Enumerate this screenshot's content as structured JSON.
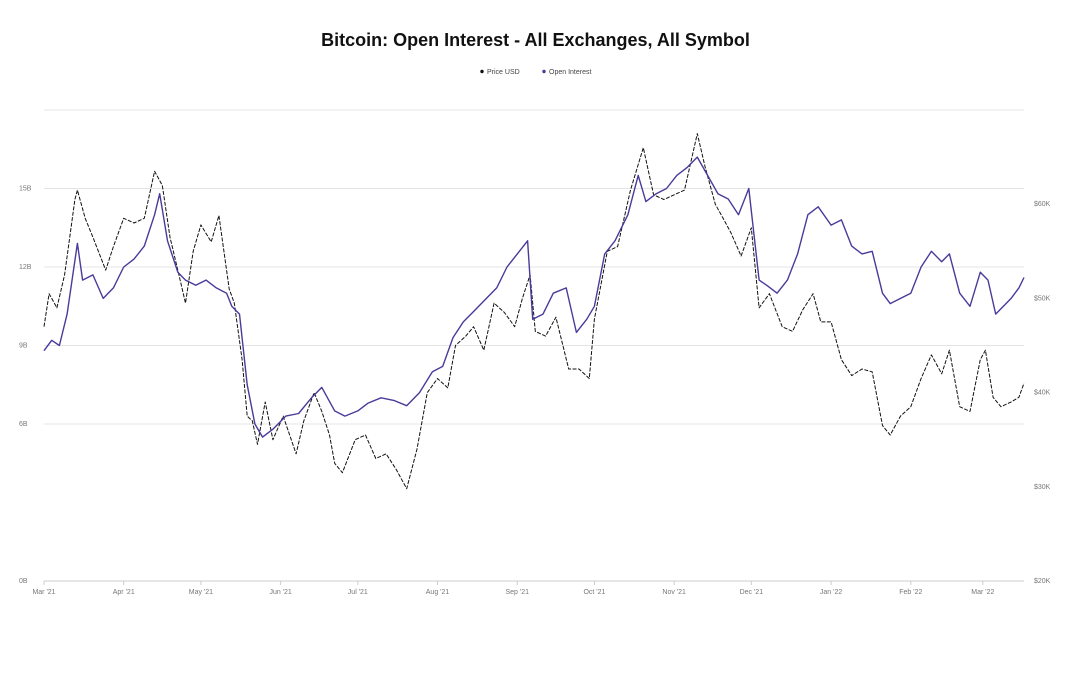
{
  "chart_data": {
    "type": "line",
    "title": "Bitcoin: Open Interest - All Exchanges, All Symbol",
    "legend": {
      "placement": "top-center",
      "entries": [
        {
          "name": "Price USD",
          "color": "#111111"
        },
        {
          "name": "Open Interest",
          "color": "#4b3a9a"
        }
      ]
    },
    "x_axis": {
      "type": "date",
      "range": [
        "2021-03-01",
        "2022-03-17"
      ],
      "ticks": [
        {
          "date": "2021-03-01",
          "label": "Mar '21"
        },
        {
          "date": "2021-04-01",
          "label": "Apr '21"
        },
        {
          "date": "2021-05-01",
          "label": "May '21"
        },
        {
          "date": "2021-06-01",
          "label": "Jun '21"
        },
        {
          "date": "2021-07-01",
          "label": "Jul '21"
        },
        {
          "date": "2021-08-01",
          "label": "Aug '21"
        },
        {
          "date": "2021-09-01",
          "label": "Sep '21"
        },
        {
          "date": "2021-10-01",
          "label": "Oct '21"
        },
        {
          "date": "2021-11-01",
          "label": "Nov '21"
        },
        {
          "date": "2021-12-01",
          "label": "Dec '21"
        },
        {
          "date": "2022-01-01",
          "label": "Jan '22"
        },
        {
          "date": "2022-02-01",
          "label": "Feb '22"
        },
        {
          "date": "2022-03-01",
          "label": "Mar '22"
        }
      ]
    },
    "y_axis_left": {
      "range": [
        0,
        18
      ],
      "ticks": [
        {
          "value": 0,
          "label": "0B"
        },
        {
          "value": 6,
          "label": "6B"
        },
        {
          "value": 9,
          "label": "9B"
        },
        {
          "value": 12,
          "label": "12B"
        },
        {
          "value": 15,
          "label": "15B"
        }
      ]
    },
    "y_axis_right": {
      "range": [
        20000,
        70000
      ],
      "ticks": [
        {
          "value": 20000,
          "label": "$20K"
        },
        {
          "value": 30000,
          "label": "$30K"
        },
        {
          "value": 40000,
          "label": "$40K"
        },
        {
          "value": 50000,
          "label": "$50K"
        },
        {
          "value": 60000,
          "label": "$60K"
        }
      ]
    },
    "grid": true,
    "series": [
      {
        "name": "Price USD",
        "axis": "right",
        "color": "#111111",
        "points": [
          [
            "2021-03-01",
            47000
          ],
          [
            "2021-03-03",
            50500
          ],
          [
            "2021-03-06",
            49000
          ],
          [
            "2021-03-09",
            52500
          ],
          [
            "2021-03-13",
            60500
          ],
          [
            "2021-03-14",
            61500
          ],
          [
            "2021-03-17",
            58500
          ],
          [
            "2021-03-20",
            56500
          ],
          [
            "2021-03-25",
            53000
          ],
          [
            "2021-03-28",
            55500
          ],
          [
            "2021-04-01",
            58500
          ],
          [
            "2021-04-05",
            58000
          ],
          [
            "2021-04-09",
            58500
          ],
          [
            "2021-04-13",
            63500
          ],
          [
            "2021-04-16",
            62000
          ],
          [
            "2021-04-19",
            56500
          ],
          [
            "2021-04-22",
            53000
          ],
          [
            "2021-04-25",
            49500
          ],
          [
            "2021-04-28",
            55000
          ],
          [
            "2021-05-01",
            57800
          ],
          [
            "2021-05-05",
            56000
          ],
          [
            "2021-05-08",
            58800
          ],
          [
            "2021-05-12",
            51000
          ],
          [
            "2021-05-14",
            49500
          ],
          [
            "2021-05-17",
            43500
          ],
          [
            "2021-05-19",
            37500
          ],
          [
            "2021-05-21",
            37000
          ],
          [
            "2021-05-23",
            34500
          ],
          [
            "2021-05-26",
            39000
          ],
          [
            "2021-05-29",
            35000
          ],
          [
            "2021-06-02",
            37500
          ],
          [
            "2021-06-07",
            33500
          ],
          [
            "2021-06-10",
            37000
          ],
          [
            "2021-06-14",
            40000
          ],
          [
            "2021-06-17",
            38000
          ],
          [
            "2021-06-20",
            35500
          ],
          [
            "2021-06-22",
            32500
          ],
          [
            "2021-06-25",
            31500
          ],
          [
            "2021-06-30",
            35000
          ],
          [
            "2021-07-04",
            35500
          ],
          [
            "2021-07-08",
            33000
          ],
          [
            "2021-07-12",
            33500
          ],
          [
            "2021-07-16",
            31800
          ],
          [
            "2021-07-20",
            29800
          ],
          [
            "2021-07-24",
            34000
          ],
          [
            "2021-07-28",
            40000
          ],
          [
            "2021-08-01",
            41500
          ],
          [
            "2021-08-05",
            40500
          ],
          [
            "2021-08-08",
            45000
          ],
          [
            "2021-08-12",
            46000
          ],
          [
            "2021-08-15",
            47000
          ],
          [
            "2021-08-19",
            44500
          ],
          [
            "2021-08-23",
            49500
          ],
          [
            "2021-08-27",
            48500
          ],
          [
            "2021-08-31",
            47000
          ],
          [
            "2021-09-03",
            50000
          ],
          [
            "2021-09-06",
            52500
          ],
          [
            "2021-09-08",
            46500
          ],
          [
            "2021-09-12",
            46000
          ],
          [
            "2021-09-16",
            48000
          ],
          [
            "2021-09-21",
            42500
          ],
          [
            "2021-09-25",
            42500
          ],
          [
            "2021-09-29",
            41500
          ],
          [
            "2021-10-01",
            47800
          ],
          [
            "2021-10-06",
            55000
          ],
          [
            "2021-10-10",
            55500
          ],
          [
            "2021-10-15",
            61500
          ],
          [
            "2021-10-20",
            66000
          ],
          [
            "2021-10-24",
            61000
          ],
          [
            "2021-10-28",
            60500
          ],
          [
            "2021-11-01",
            61000
          ],
          [
            "2021-11-05",
            61500
          ],
          [
            "2021-11-10",
            67500
          ],
          [
            "2021-11-13",
            64000
          ],
          [
            "2021-11-17",
            60000
          ],
          [
            "2021-11-20",
            58500
          ],
          [
            "2021-11-23",
            57000
          ],
          [
            "2021-11-27",
            54500
          ],
          [
            "2021-12-01",
            57500
          ],
          [
            "2021-12-04",
            49000
          ],
          [
            "2021-12-08",
            50500
          ],
          [
            "2021-12-13",
            47000
          ],
          [
            "2021-12-17",
            46500
          ],
          [
            "2021-12-21",
            48800
          ],
          [
            "2021-12-25",
            50500
          ],
          [
            "2021-12-28",
            47500
          ],
          [
            "2022-01-01",
            47500
          ],
          [
            "2022-01-05",
            43500
          ],
          [
            "2022-01-09",
            41800
          ],
          [
            "2022-01-13",
            42500
          ],
          [
            "2022-01-17",
            42200
          ],
          [
            "2022-01-21",
            36500
          ],
          [
            "2022-01-24",
            35500
          ],
          [
            "2022-01-28",
            37500
          ],
          [
            "2022-02-01",
            38500
          ],
          [
            "2022-02-05",
            41500
          ],
          [
            "2022-02-09",
            44000
          ],
          [
            "2022-02-13",
            42000
          ],
          [
            "2022-02-16",
            44500
          ],
          [
            "2022-02-20",
            38500
          ],
          [
            "2022-02-24",
            38000
          ],
          [
            "2022-02-28",
            43500
          ],
          [
            "2022-03-02",
            44500
          ],
          [
            "2022-03-05",
            39500
          ],
          [
            "2022-03-08",
            38500
          ],
          [
            "2022-03-12",
            39000
          ],
          [
            "2022-03-15",
            39500
          ],
          [
            "2022-03-17",
            41000
          ]
        ]
      },
      {
        "name": "Open Interest",
        "axis": "left",
        "color": "#4b3a9a",
        "points": [
          [
            "2021-03-01",
            8.8
          ],
          [
            "2021-03-04",
            9.2
          ],
          [
            "2021-03-07",
            9.0
          ],
          [
            "2021-03-10",
            10.2
          ],
          [
            "2021-03-14",
            12.9
          ],
          [
            "2021-03-16",
            11.5
          ],
          [
            "2021-03-20",
            11.7
          ],
          [
            "2021-03-24",
            10.8
          ],
          [
            "2021-03-28",
            11.2
          ],
          [
            "2021-04-01",
            12.0
          ],
          [
            "2021-04-05",
            12.3
          ],
          [
            "2021-04-09",
            12.8
          ],
          [
            "2021-04-13",
            14.0
          ],
          [
            "2021-04-15",
            14.8
          ],
          [
            "2021-04-18",
            13.0
          ],
          [
            "2021-04-22",
            11.8
          ],
          [
            "2021-04-25",
            11.5
          ],
          [
            "2021-04-29",
            11.3
          ],
          [
            "2021-05-03",
            11.5
          ],
          [
            "2021-05-07",
            11.2
          ],
          [
            "2021-05-11",
            11.0
          ],
          [
            "2021-05-13",
            10.5
          ],
          [
            "2021-05-16",
            10.2
          ],
          [
            "2021-05-19",
            7.5
          ],
          [
            "2021-05-22",
            6.0
          ],
          [
            "2021-05-25",
            5.5
          ],
          [
            "2021-05-29",
            5.8
          ],
          [
            "2021-06-03",
            6.3
          ],
          [
            "2021-06-08",
            6.4
          ],
          [
            "2021-06-13",
            7.0
          ],
          [
            "2021-06-17",
            7.4
          ],
          [
            "2021-06-22",
            6.5
          ],
          [
            "2021-06-26",
            6.3
          ],
          [
            "2021-07-01",
            6.5
          ],
          [
            "2021-07-05",
            6.8
          ],
          [
            "2021-07-10",
            7.0
          ],
          [
            "2021-07-15",
            6.9
          ],
          [
            "2021-07-20",
            6.7
          ],
          [
            "2021-07-25",
            7.2
          ],
          [
            "2021-07-30",
            8.0
          ],
          [
            "2021-08-03",
            8.2
          ],
          [
            "2021-08-07",
            9.3
          ],
          [
            "2021-08-11",
            9.9
          ],
          [
            "2021-08-15",
            10.3
          ],
          [
            "2021-08-20",
            10.8
          ],
          [
            "2021-08-24",
            11.2
          ],
          [
            "2021-08-28",
            12.0
          ],
          [
            "2021-09-01",
            12.5
          ],
          [
            "2021-09-05",
            13.0
          ],
          [
            "2021-09-07",
            10.0
          ],
          [
            "2021-09-11",
            10.2
          ],
          [
            "2021-09-15",
            11.0
          ],
          [
            "2021-09-20",
            11.2
          ],
          [
            "2021-09-24",
            9.5
          ],
          [
            "2021-09-28",
            10.0
          ],
          [
            "2021-10-01",
            10.5
          ],
          [
            "2021-10-05",
            12.5
          ],
          [
            "2021-10-09",
            13.0
          ],
          [
            "2021-10-14",
            14.0
          ],
          [
            "2021-10-18",
            15.5
          ],
          [
            "2021-10-21",
            14.5
          ],
          [
            "2021-10-25",
            14.8
          ],
          [
            "2021-10-29",
            15.0
          ],
          [
            "2021-11-02",
            15.5
          ],
          [
            "2021-11-06",
            15.8
          ],
          [
            "2021-11-10",
            16.2
          ],
          [
            "2021-11-14",
            15.5
          ],
          [
            "2021-11-18",
            14.8
          ],
          [
            "2021-11-22",
            14.6
          ],
          [
            "2021-11-26",
            14.0
          ],
          [
            "2021-11-30",
            15.0
          ],
          [
            "2021-12-04",
            11.5
          ],
          [
            "2021-12-07",
            11.3
          ],
          [
            "2021-12-11",
            11.0
          ],
          [
            "2021-12-15",
            11.5
          ],
          [
            "2021-12-19",
            12.5
          ],
          [
            "2021-12-23",
            14.0
          ],
          [
            "2021-12-27",
            14.3
          ],
          [
            "2022-01-01",
            13.6
          ],
          [
            "2022-01-05",
            13.8
          ],
          [
            "2022-01-09",
            12.8
          ],
          [
            "2022-01-13",
            12.5
          ],
          [
            "2022-01-17",
            12.6
          ],
          [
            "2022-01-21",
            11.0
          ],
          [
            "2022-01-24",
            10.6
          ],
          [
            "2022-01-28",
            10.8
          ],
          [
            "2022-02-01",
            11.0
          ],
          [
            "2022-02-05",
            12.0
          ],
          [
            "2022-02-09",
            12.6
          ],
          [
            "2022-02-13",
            12.2
          ],
          [
            "2022-02-16",
            12.5
          ],
          [
            "2022-02-20",
            11.0
          ],
          [
            "2022-02-24",
            10.5
          ],
          [
            "2022-02-28",
            11.8
          ],
          [
            "2022-03-03",
            11.5
          ],
          [
            "2022-03-06",
            10.2
          ],
          [
            "2022-03-09",
            10.5
          ],
          [
            "2022-03-12",
            10.8
          ],
          [
            "2022-03-15",
            11.2
          ],
          [
            "2022-03-17",
            11.6
          ]
        ]
      }
    ]
  }
}
